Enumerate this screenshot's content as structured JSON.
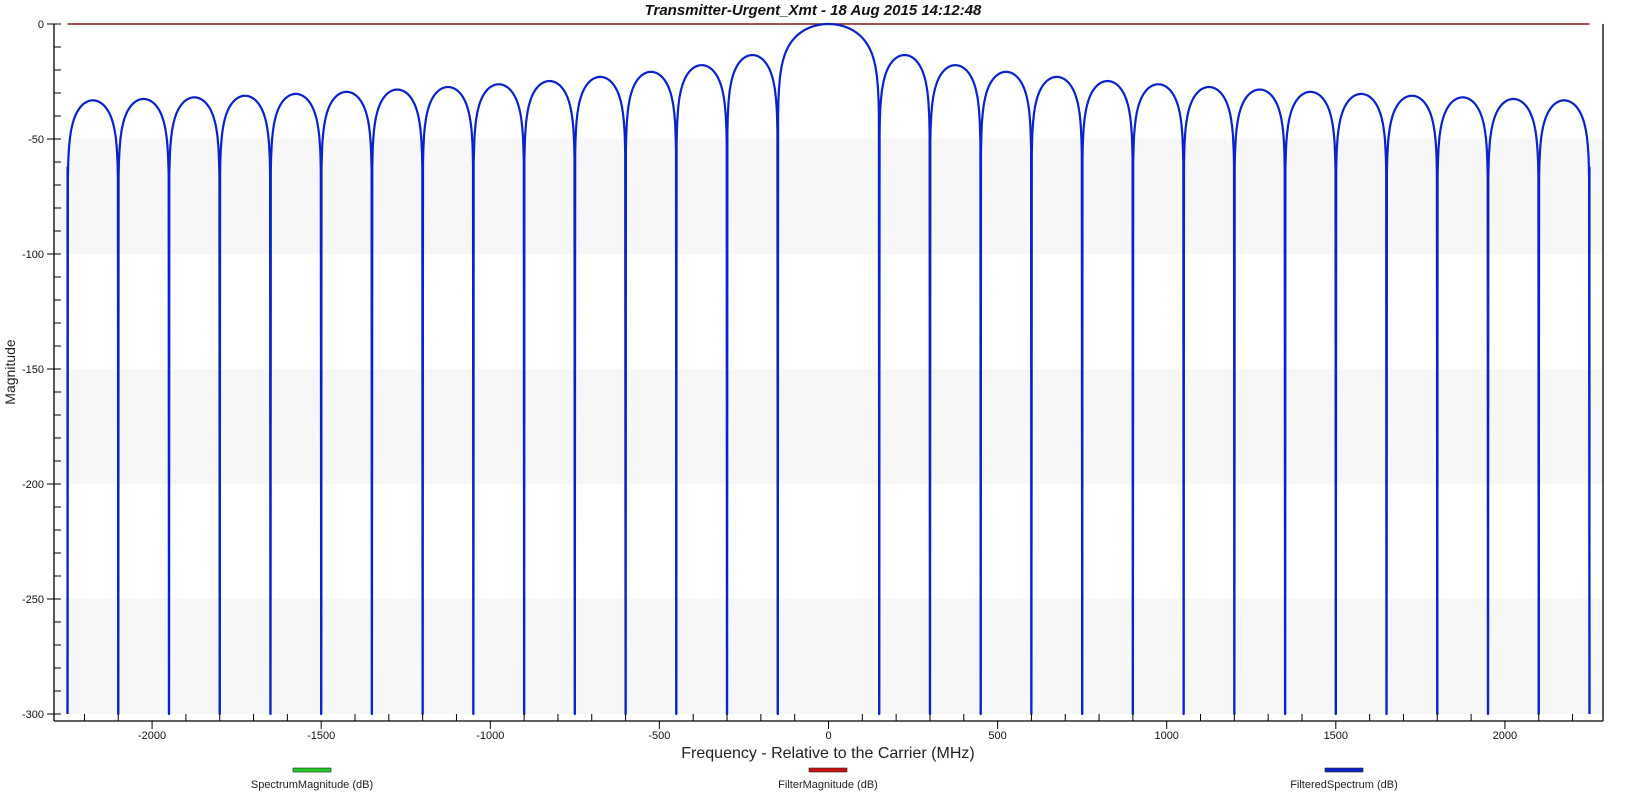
{
  "chart_data": {
    "type": "line",
    "title": "Transmitter-Urgent_Xmt - 18 Aug 2015 14:12:48",
    "xlabel": "Frequency - Relative to the Carrier (MHz)",
    "ylabel": "Magnitude",
    "xlim": [
      -2290,
      2290
    ],
    "ylim": [
      -300,
      0
    ],
    "x_ticks": [
      -2000,
      -1500,
      -1000,
      -500,
      0,
      500,
      1000,
      1500,
      2000
    ],
    "y_ticks": [
      0,
      -50,
      -100,
      -150,
      -200,
      -250,
      -300
    ],
    "grid": false,
    "background_bands": [
      [
        -50,
        -100
      ],
      [
        -150,
        -200
      ],
      [
        -250,
        -300
      ]
    ],
    "legend_position": "bottom",
    "series": [
      {
        "name": "SpectrumMagnitude (dB)",
        "color": "#22cc22",
        "points": []
      },
      {
        "name": "FilterMagnitude (dB)",
        "color": "#cc1111",
        "x": [
          -2250,
          2250
        ],
        "y": [
          0,
          0
        ]
      },
      {
        "name": "FilteredSpectrum (dB)",
        "color": "#0a22c8",
        "nulls_x": [
          -2250,
          -2100,
          -1950,
          -1800,
          -1650,
          -1500,
          -1350,
          -1200,
          -1050,
          -900,
          -750,
          -600,
          -450,
          -300,
          -150,
          150,
          300,
          450,
          600,
          750,
          900,
          1050,
          1200,
          1350,
          1500,
          1650,
          1800,
          1950,
          2100,
          2250
        ],
        "null_y": -300,
        "lobe_peaks": [
          {
            "x": -2175,
            "y": -33.2
          },
          {
            "x": -2025,
            "y": -32.6
          },
          {
            "x": -1875,
            "y": -31.9
          },
          {
            "x": -1725,
            "y": -31.2
          },
          {
            "x": -1575,
            "y": -30.4
          },
          {
            "x": -1425,
            "y": -29.5
          },
          {
            "x": -1275,
            "y": -28.5
          },
          {
            "x": -1125,
            "y": -27.4
          },
          {
            "x": -975,
            "y": -26.2
          },
          {
            "x": -825,
            "y": -24.8
          },
          {
            "x": -675,
            "y": -23.0
          },
          {
            "x": -525,
            "y": -20.8
          },
          {
            "x": -375,
            "y": -17.9
          },
          {
            "x": -225,
            "y": -13.5
          },
          {
            "x": 0,
            "y": 0
          },
          {
            "x": 225,
            "y": -13.5
          },
          {
            "x": 375,
            "y": -17.9
          },
          {
            "x": 525,
            "y": -20.8
          },
          {
            "x": 675,
            "y": -23.0
          },
          {
            "x": 825,
            "y": -24.8
          },
          {
            "x": 975,
            "y": -26.2
          },
          {
            "x": 1125,
            "y": -27.4
          },
          {
            "x": 1275,
            "y": -28.5
          },
          {
            "x": 1425,
            "y": -29.5
          },
          {
            "x": 1575,
            "y": -30.4
          },
          {
            "x": 1725,
            "y": -31.2
          },
          {
            "x": 1875,
            "y": -31.9
          },
          {
            "x": 2025,
            "y": -32.6
          },
          {
            "x": 2175,
            "y": -33.2
          }
        ]
      }
    ]
  }
}
